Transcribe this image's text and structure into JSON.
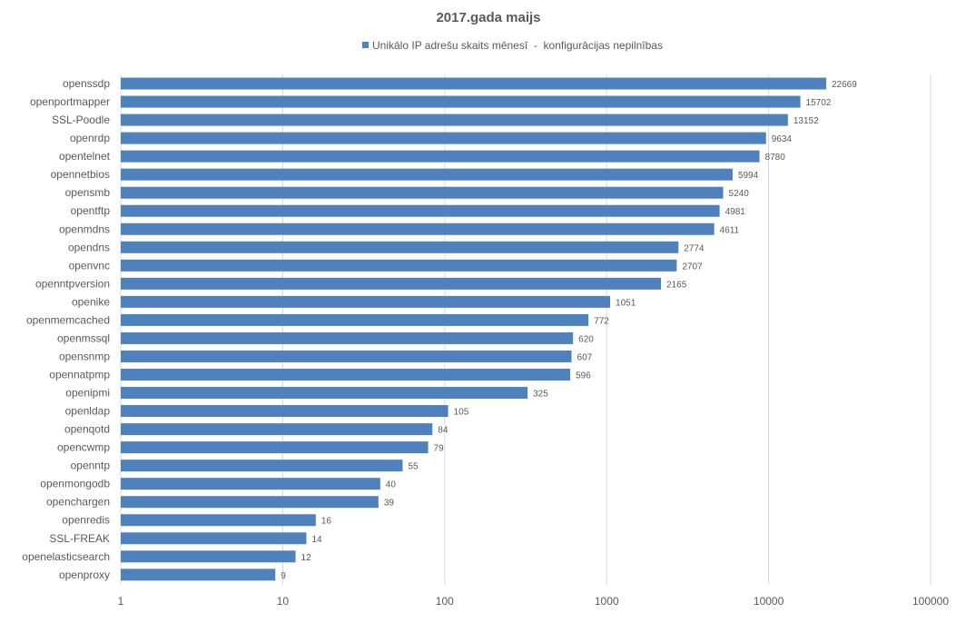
{
  "chart_data": {
    "type": "bar",
    "orientation": "horizontal",
    "title": "2017.gada maijs",
    "legend": {
      "position": "top",
      "label": "Unikālo IP adrešu skaits mēnesī  -  konfigurācijas nepilnības"
    },
    "x_scale": "log",
    "xlim": [
      1,
      100000
    ],
    "x_ticks": [
      "1",
      "10",
      "100",
      "1000",
      "10000",
      "100000"
    ],
    "x_tick_values": [
      1,
      10,
      100,
      1000,
      10000,
      100000
    ],
    "grid": true,
    "categories": [
      "openssdp",
      "openportmapper",
      "SSL-Poodle",
      "openrdp",
      "opentelnet",
      "opennetbios",
      "opensmb",
      "opentftp",
      "openmdns",
      "opendns",
      "openvnc",
      "openntpversion",
      "openike",
      "openmemcached",
      "openmssql",
      "opensnmp",
      "opennatpmp",
      "openipmi",
      "openldap",
      "openqotd",
      "opencwmp",
      "openntp",
      "openmongodb",
      "openchargen",
      "openredis",
      "SSL-FREAK",
      "openelasticsearch",
      "openproxy"
    ],
    "values": [
      22669,
      15702,
      13152,
      9634,
      8780,
      5994,
      5240,
      4981,
      4611,
      2774,
      2707,
      2165,
      1051,
      772,
      620,
      607,
      596,
      325,
      105,
      84,
      79,
      55,
      40,
      39,
      16,
      14,
      12,
      9
    ],
    "colors": {
      "bar": "#4f81bd",
      "grid": "#d9d9d9",
      "text": "#595959"
    }
  }
}
